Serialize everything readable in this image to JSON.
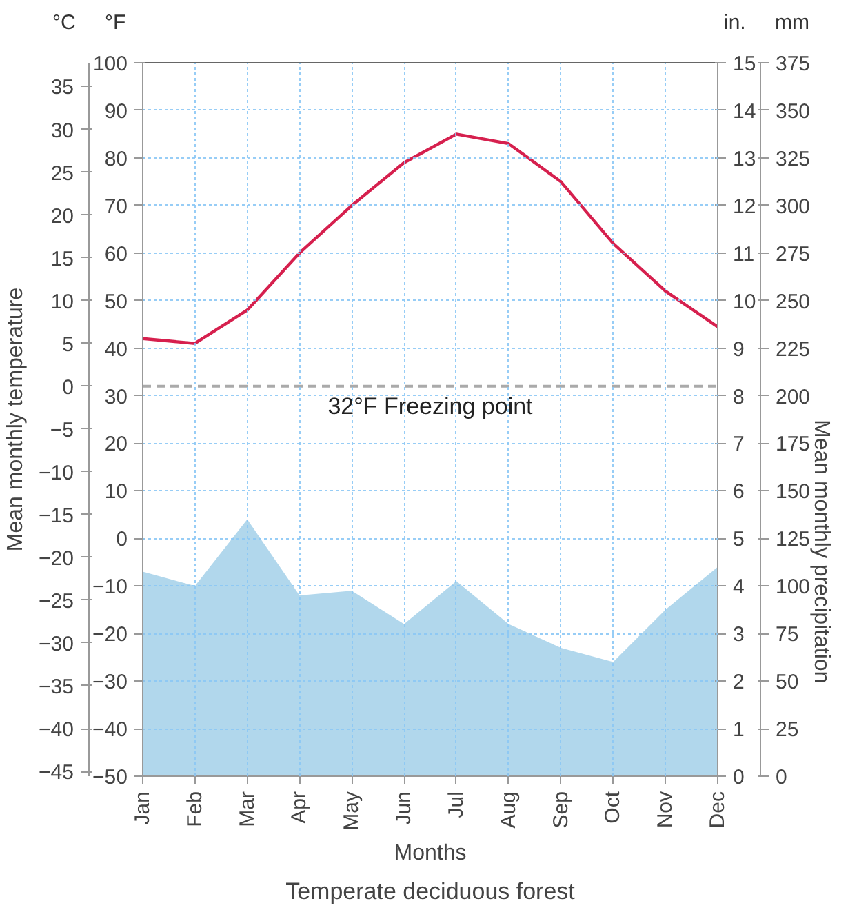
{
  "chart_data": {
    "type": "line",
    "title": "Temperate deciduous forest",
    "xlabel": "Months",
    "ylabel": "Mean monthly temperature",
    "y2label": "Mean monthly precipitation",
    "categories": [
      "Jan",
      "Feb",
      "Mar",
      "Apr",
      "May",
      "Jun",
      "Jul",
      "Aug",
      "Sep",
      "Oct",
      "Nov",
      "Dec"
    ],
    "ylim": [
      -50,
      100
    ],
    "yticks": [
      -50,
      -40,
      -30,
      -20,
      -10,
      0,
      10,
      20,
      30,
      40,
      50,
      60,
      70,
      80,
      90,
      100
    ],
    "y3lim": [
      -45.56,
      37.78
    ],
    "y3ticks": [
      -45,
      -40,
      -35,
      -30,
      -25,
      -20,
      -15,
      -10,
      -5,
      0,
      5,
      10,
      15,
      20,
      25,
      30,
      35
    ],
    "y2lim": [
      0,
      15
    ],
    "y2ticks": [
      0,
      1,
      2,
      3,
      4,
      5,
      6,
      7,
      8,
      9,
      10,
      11,
      12,
      13,
      14,
      15
    ],
    "series": [
      {
        "color": "#d6204e",
        "values": [
          42,
          41,
          48,
          60,
          70,
          79,
          85,
          83,
          75,
          62,
          52,
          44.5
        ]
      },
      {
        "type": "area",
        "axis": "y2",
        "color": "#a9d3ea",
        "values": [
          4.3,
          4.0,
          5.4,
          3.8,
          3.9,
          3.2,
          4.1,
          3.2,
          2.7,
          2.4,
          3.5,
          4.4
        ]
      }
    ],
    "ref_lines": [
      {
        "axis": "y",
        "value": 32,
        "label": "32°F Freezing point",
        "color": "#aaaaaa",
        "line_style": "dashed"
      }
    ],
    "annotations": [
      "°C",
      "°F",
      "in.",
      "mm",
      "0",
      "25",
      "50",
      "75",
      "100",
      "125",
      "150",
      "175",
      "200",
      "225",
      "250",
      "275",
      "300",
      "325",
      "350",
      "375"
    ],
    "grid": true,
    "marker": "none",
    "line_style": "solid"
  }
}
